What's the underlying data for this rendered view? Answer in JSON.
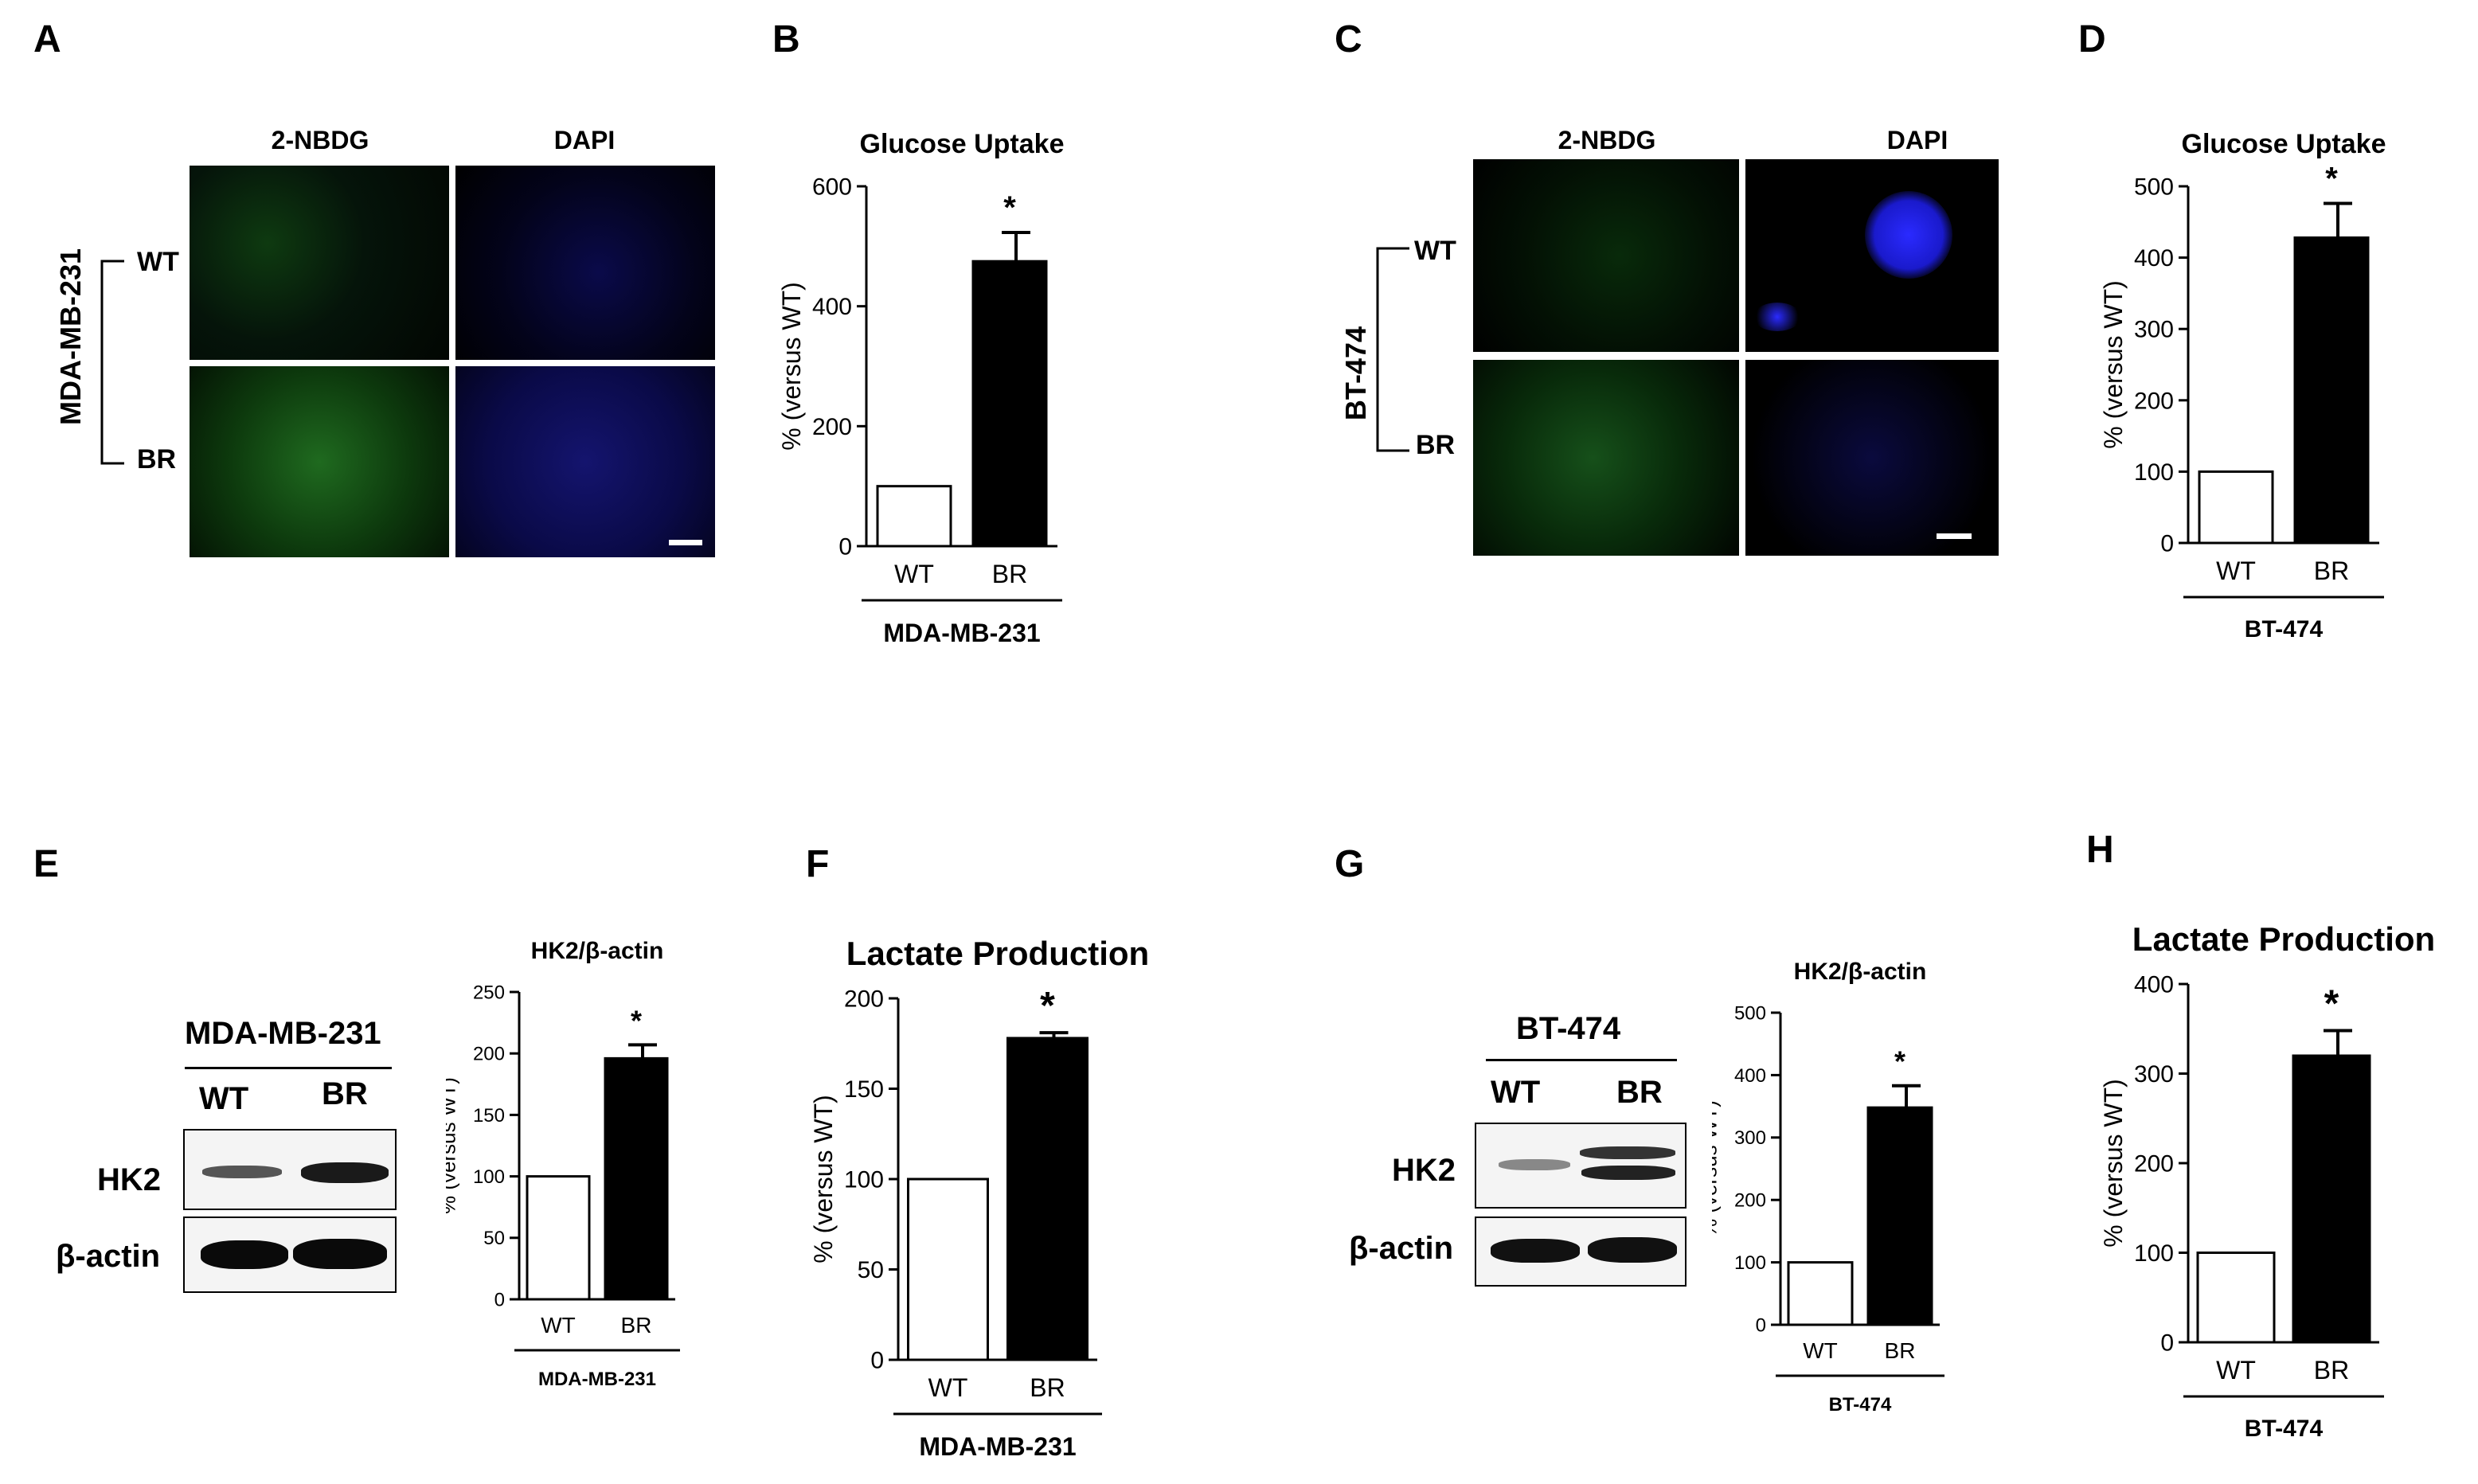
{
  "panel_letters": [
    "A",
    "B",
    "C",
    "D",
    "E",
    "F",
    "G",
    "H"
  ],
  "micrographs": [
    {
      "column_labels": [
        "2-NBDG",
        "DAPI"
      ],
      "row_labels": [
        "WT",
        "BR"
      ],
      "cell_line": "MDA-MB-231"
    },
    {
      "column_labels": [
        "2-NBDG",
        "DAPI"
      ],
      "row_labels": [
        "WT",
        "BR"
      ],
      "cell_line": "BT-474"
    }
  ],
  "blots": [
    {
      "cell_line": "MDA-MB-231",
      "lanes": [
        "WT",
        "BR"
      ],
      "rows": [
        "HK2",
        "β-actin"
      ]
    },
    {
      "cell_line": "BT-474",
      "lanes": [
        "WT",
        "BR"
      ],
      "rows": [
        "HK2",
        "β-actin"
      ]
    }
  ],
  "colors": {
    "bar_fill": "#000000",
    "bar_empty": "#ffffff",
    "fluor_green": "#3cd23c",
    "fluor_blue": "#2a2aff"
  },
  "chart_data": [
    {
      "panel": "B",
      "type": "bar",
      "title": "Glucose Uptake",
      "ylabel": "% (versus WT)",
      "xlabel": "MDA-MB-231",
      "categories": [
        "WT",
        "BR"
      ],
      "values": [
        100,
        475
      ],
      "errors": [
        0,
        48
      ],
      "significance": [
        "",
        "*"
      ],
      "ylim": [
        0,
        600
      ],
      "yticks": [
        0,
        200,
        400,
        600
      ]
    },
    {
      "panel": "D",
      "type": "bar",
      "title": "Glucose Uptake",
      "ylabel": "% (versus WT)",
      "xlabel": "BT-474",
      "categories": [
        "WT",
        "BR"
      ],
      "values": [
        100,
        428
      ],
      "errors": [
        0,
        48
      ],
      "significance": [
        "",
        "*"
      ],
      "ylim": [
        0,
        500
      ],
      "yticks": [
        0,
        100,
        200,
        300,
        400,
        500
      ]
    },
    {
      "panel": "E",
      "type": "bar",
      "title": "HK2/β-actin",
      "ylabel": "% (versus WT)",
      "xlabel": "MDA-MB-231",
      "categories": [
        "WT",
        "BR"
      ],
      "values": [
        100,
        196
      ],
      "errors": [
        0,
        11
      ],
      "significance": [
        "",
        "*"
      ],
      "ylim": [
        0,
        250
      ],
      "yticks": [
        0,
        50,
        100,
        150,
        200,
        250
      ]
    },
    {
      "panel": "F",
      "type": "bar",
      "title": "Lactate Production",
      "ylabel": "% (versus WT)",
      "xlabel": "MDA-MB-231",
      "categories": [
        "WT",
        "BR"
      ],
      "values": [
        100,
        178
      ],
      "errors": [
        0,
        3
      ],
      "significance": [
        "",
        "*"
      ],
      "ylim": [
        0,
        200
      ],
      "yticks": [
        0,
        50,
        100,
        150,
        200
      ]
    },
    {
      "panel": "G",
      "type": "bar",
      "title": "HK2/β-actin",
      "ylabel": "% (versus WT)",
      "xlabel": "BT-474",
      "categories": [
        "WT",
        "BR"
      ],
      "values": [
        100,
        348
      ],
      "errors": [
        0,
        35
      ],
      "significance": [
        "",
        "*"
      ],
      "ylim": [
        0,
        500
      ],
      "yticks": [
        0,
        100,
        200,
        300,
        400,
        500
      ]
    },
    {
      "panel": "H",
      "type": "bar",
      "title": "Lactate Production",
      "ylabel": "% (versus WT)",
      "xlabel": "BT-474",
      "categories": [
        "WT",
        "BR"
      ],
      "values": [
        100,
        320
      ],
      "errors": [
        0,
        28
      ],
      "significance": [
        "",
        "*"
      ],
      "ylim": [
        0,
        400
      ],
      "yticks": [
        0,
        100,
        200,
        300,
        400
      ]
    }
  ]
}
